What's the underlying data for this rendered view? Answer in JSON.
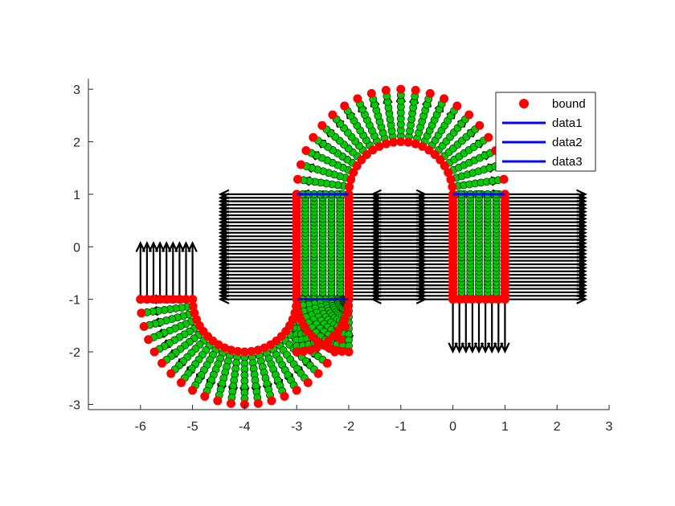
{
  "chart_data": {
    "type": "scatter",
    "title": "",
    "xlabel": "",
    "ylabel": "",
    "xlim": [
      -7,
      3
    ],
    "ylim": [
      -3.1,
      3.2
    ],
    "xticks": [
      -6,
      -5,
      -4,
      -3,
      -2,
      -1,
      0,
      1,
      2,
      3
    ],
    "yticks": [
      -3,
      -2,
      -1,
      0,
      1,
      2,
      3
    ],
    "grid": false,
    "legend": {
      "placement": "top-right",
      "entries": [
        "bound",
        "data1",
        "data2",
        "data3"
      ]
    },
    "series": [
      {
        "name": "bound",
        "kind": "markers",
        "color": "#ff0000",
        "note_shape": "boundary of three shapes: U-arc on left, vertical slot with arcs, inverted U on right",
        "components": [
          {
            "shape": "arc",
            "center": [
              -4,
              -1
            ],
            "r_inner": 1.0,
            "r_outer": 2.0,
            "theta_deg": [
              180,
              360
            ]
          },
          {
            "shape": "rect",
            "x": [
              -3,
              -2
            ],
            "y": [
              -1,
              1
            ]
          },
          {
            "shape": "arc",
            "center": [
              -1,
              1
            ],
            "r_inner": 1.0,
            "r_outer": 2.0,
            "theta_deg": [
              0,
              180
            ]
          },
          {
            "shape": "rect",
            "x": [
              0,
              1
            ],
            "y": [
              -1,
              1
            ]
          },
          {
            "shape": "arc",
            "center": [
              -1,
              -1
            ],
            "r_inner": 1.0,
            "r_outer": 2.0,
            "theta_deg": [
              180,
              270
            ]
          }
        ]
      },
      {
        "name": "data1",
        "kind": "line",
        "color": "#0000ff",
        "x": [
          -3,
          -2
        ],
        "y": [
          1,
          1
        ]
      },
      {
        "name": "data2",
        "kind": "line",
        "color": "#0000ff",
        "x": [
          -3,
          -2
        ],
        "y": [
          -1,
          -1
        ]
      },
      {
        "name": "data3",
        "kind": "line",
        "color": "#0000ff",
        "x": [
          0,
          1
        ],
        "y": [
          1,
          1
        ]
      }
    ],
    "interior_color": "#00cc00",
    "arrow_color": "#000000"
  }
}
